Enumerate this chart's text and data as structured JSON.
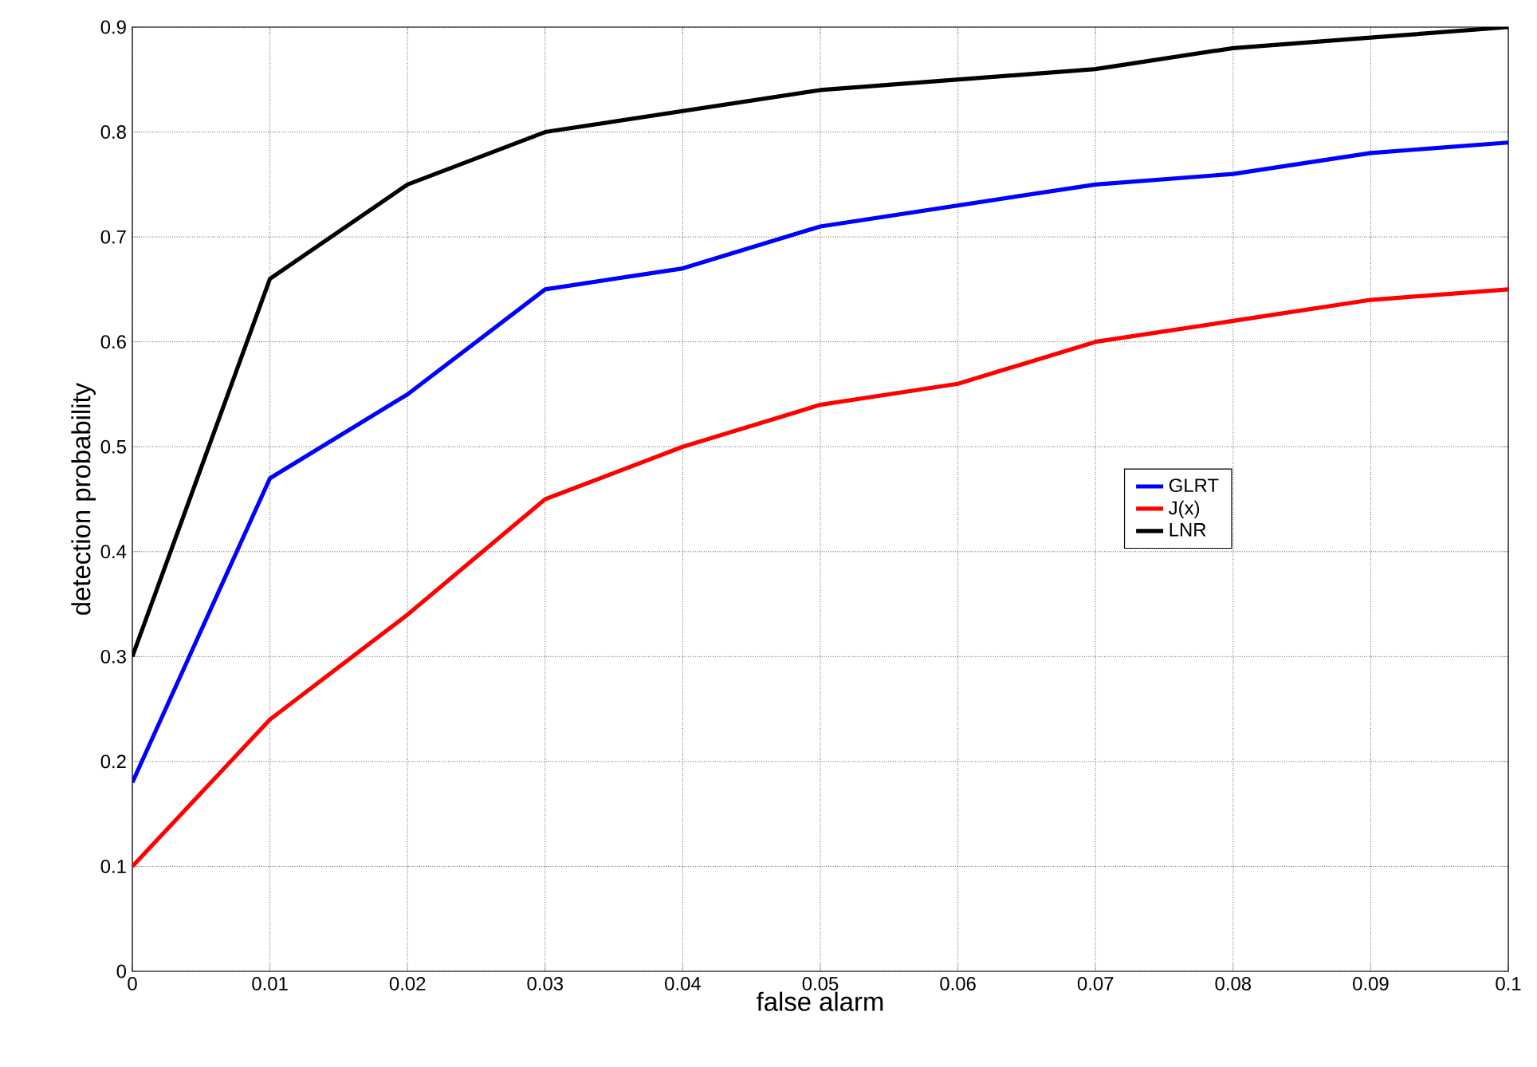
{
  "chart_data": {
    "type": "line",
    "xlabel": "false alarm",
    "ylabel": "detection probability",
    "x": [
      0,
      0.01,
      0.02,
      0.03,
      0.04,
      0.05,
      0.06,
      0.07,
      0.08,
      0.09,
      0.1
    ],
    "series": [
      {
        "name": "GLRT",
        "color": "#0000ff",
        "values": [
          0.18,
          0.47,
          0.55,
          0.65,
          0.67,
          0.71,
          0.73,
          0.75,
          0.76,
          0.78,
          0.79
        ]
      },
      {
        "name": "J(x)",
        "color": "#ff0000",
        "values": [
          0.1,
          0.24,
          0.34,
          0.45,
          0.5,
          0.54,
          0.56,
          0.6,
          0.62,
          0.64,
          0.65
        ]
      },
      {
        "name": "LNR",
        "color": "#000000",
        "values": [
          0.3,
          0.66,
          0.75,
          0.8,
          0.82,
          0.84,
          0.85,
          0.86,
          0.88,
          0.89,
          0.9
        ]
      }
    ],
    "xlim": [
      0,
      0.1
    ],
    "ylim": [
      0,
      0.9
    ],
    "xticks": [
      0,
      0.01,
      0.02,
      0.03,
      0.04,
      0.05,
      0.06,
      0.07,
      0.08,
      0.09,
      0.1
    ],
    "yticks": [
      0,
      0.1,
      0.2,
      0.3,
      0.4,
      0.5,
      0.6,
      0.7,
      0.8,
      0.9
    ],
    "grid": true,
    "legend": "right",
    "marker": "none",
    "line_style": "solid"
  }
}
